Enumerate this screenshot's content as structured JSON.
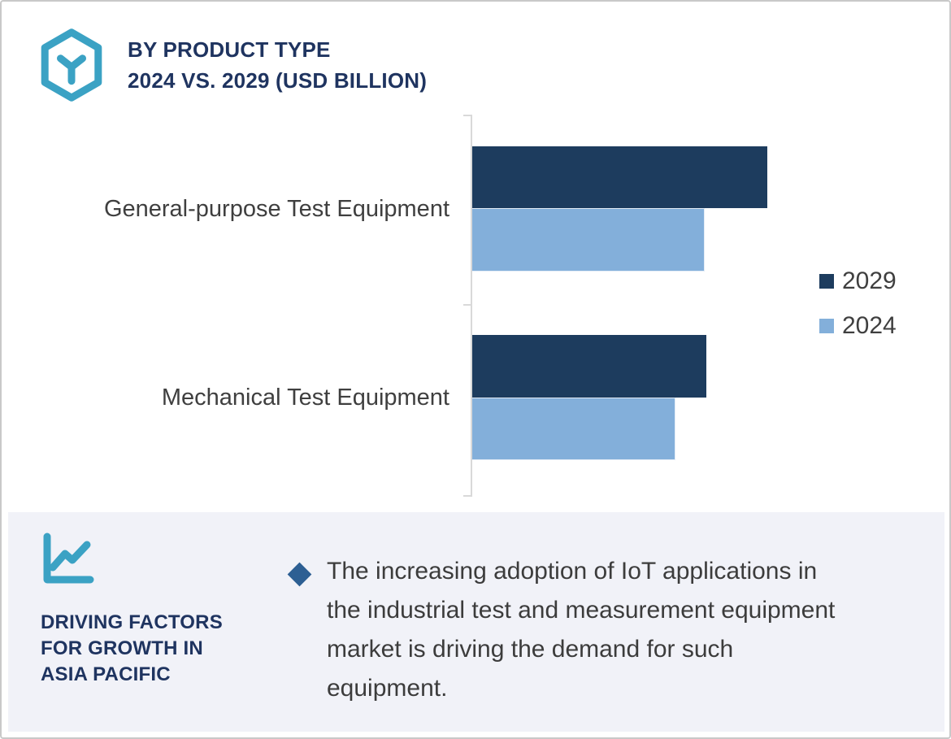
{
  "header": {
    "icon_name": "hexagon-cube-icon",
    "title_lines": [
      "BY PRODUCT TYPE",
      "2024 VS. 2029 (USD BILLION)"
    ]
  },
  "chart_data": {
    "type": "bar",
    "orientation": "horizontal",
    "title": "BY PRODUCT TYPE 2024 VS. 2029 (USD BILLION)",
    "unit": "USD Billion",
    "value_labels_shown": false,
    "value_axis_shown": false,
    "grid": false,
    "categories": [
      "General-purpose Test Equipment",
      "Mechanical Test Equipment"
    ],
    "series": [
      {
        "name": "2029",
        "color": "#1d3c5e",
        "bar_length_pct_of_plot": [
          62.4,
          49.5
        ]
      },
      {
        "name": "2024",
        "color": "#83afda",
        "bar_length_pct_of_plot": [
          49.1,
          43.0
        ]
      }
    ],
    "legend_position": "right",
    "note": "No numeric value labels or value-axis ticks are shown; bar lengths are estimated as percent of plot width (2029 > 2024 in both categories)."
  },
  "driving_factors": {
    "icon_name": "line-chart-icon",
    "heading_lines": [
      "DRIVING FACTORS",
      "FOR GROWTH IN",
      "ASIA PACIFIC"
    ],
    "bullet": {
      "marker": "diamond",
      "text": "The increasing adoption of IoT applications in the industrial test and measurement equipment market is driving the demand for such equipment.",
      "lines": [
        "The increasing adoption of IoT applications in",
        "the industrial test and measurement equipment",
        "market is driving the demand for such",
        "equipment."
      ]
    }
  },
  "colors": {
    "accent_teal": "#3ba2c4",
    "navy_text": "#1f3460",
    "bar_2029": "#1d3c5e",
    "bar_2024": "#83afda",
    "panel_bg": "#f1f2f8",
    "body_text": "#3c3c3c",
    "axis_gray": "#d9d9d9",
    "bullet_diamond": "#2d5f93"
  }
}
